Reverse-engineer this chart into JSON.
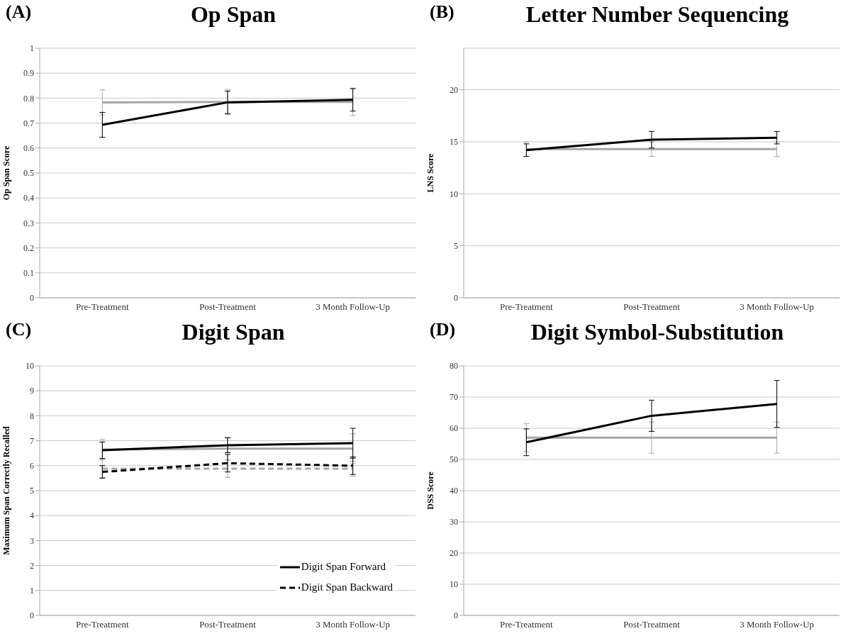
{
  "chart_data": [
    {
      "type": "line",
      "title": "Op Span",
      "annotations": [
        "(A)"
      ],
      "ylabel": "Op Span Score",
      "categories": [
        "Pre-Treatment",
        "Post-Treatment",
        "3 Month Follow-Up"
      ],
      "ylim": [
        0,
        1
      ],
      "yticks": [
        0,
        0.1,
        0.2,
        0.3,
        0.4,
        0.5,
        0.6,
        0.7,
        0.8,
        0.9,
        1
      ],
      "grid": "y",
      "legend": false,
      "marker": "none",
      "series": [
        {
          "color": "#a6a6a6",
          "values": [
            0.783,
            0.785,
            0.785
          ],
          "errors": [
            0.05,
            0.05,
            0.055
          ]
        },
        {
          "color": "#000000",
          "values": [
            0.693,
            0.783,
            0.793
          ],
          "errors": [
            0.05,
            0.045,
            0.045
          ]
        }
      ]
    },
    {
      "type": "line",
      "title": "Letter Number Sequencing",
      "annotations": [
        "(B)"
      ],
      "ylabel": "LNS Score",
      "categories": [
        "Pre-Treatment",
        "Post-Treatment",
        "3 Month Follow-Up"
      ],
      "ylim": [
        0,
        24
      ],
      "yticks": [
        0,
        5,
        10,
        15,
        20
      ],
      "grid": "y",
      "legend": false,
      "marker": "none",
      "series": [
        {
          "color": "#a6a6a6",
          "values": [
            14.3,
            14.3,
            14.3
          ],
          "errors": [
            0.7,
            0.7,
            0.7
          ]
        },
        {
          "color": "#000000",
          "values": [
            14.2,
            15.2,
            15.4
          ],
          "errors": [
            0.6,
            0.8,
            0.6
          ]
        }
      ]
    },
    {
      "type": "line",
      "title": "Digit Span",
      "annotations": [
        "(C)"
      ],
      "ylabel": "Maximum  Span Correctly Recalled",
      "categories": [
        "Pre-Treatment",
        "Post-Treatment",
        "3 Month Follow-Up"
      ],
      "ylim": [
        0,
        10
      ],
      "yticks": [
        0,
        1,
        2,
        3,
        4,
        5,
        6,
        7,
        8,
        9,
        10
      ],
      "grid": "y",
      "legend": "bottom right",
      "marker": "none",
      "series": [
        {
          "color": "#a6a6a6",
          "line_style": "solid",
          "values": [
            6.65,
            6.68,
            6.68
          ],
          "errors": [
            0.4,
            0.45,
            0.6
          ]
        },
        {
          "color": "#a6a6a6",
          "line_style": "dashed",
          "values": [
            5.88,
            5.88,
            5.88
          ],
          "errors": [
            0.35,
            0.35,
            0.3
          ]
        },
        {
          "name": "Digit Span Forward",
          "color": "#000000",
          "line_style": "solid",
          "values": [
            6.62,
            6.82,
            6.9
          ],
          "errors": [
            0.33,
            0.3,
            0.6
          ]
        },
        {
          "name": "Digit Span Backward",
          "color": "#000000",
          "line_style": "dashed",
          "values": [
            5.75,
            6.1,
            6.0
          ],
          "errors": [
            0.25,
            0.35,
            0.35
          ]
        }
      ]
    },
    {
      "type": "line",
      "title": "Digit Symbol-Substitution",
      "annotations": [
        "(D)"
      ],
      "ylabel": "DSS Score",
      "categories": [
        "Pre-Treatment",
        "Post-Treatment",
        "3 Month Follow-Up"
      ],
      "ylim": [
        0,
        80
      ],
      "yticks": [
        0,
        10,
        20,
        30,
        40,
        50,
        60,
        70,
        80
      ],
      "grid": "y",
      "legend": false,
      "marker": "none",
      "series": [
        {
          "color": "#a6a6a6",
          "values": [
            57,
            57,
            57
          ],
          "errors": [
            4.5,
            5,
            5
          ]
        },
        {
          "color": "#000000",
          "values": [
            55.5,
            64,
            67.8
          ],
          "errors": [
            4.3,
            5,
            7.5
          ]
        }
      ]
    }
  ]
}
